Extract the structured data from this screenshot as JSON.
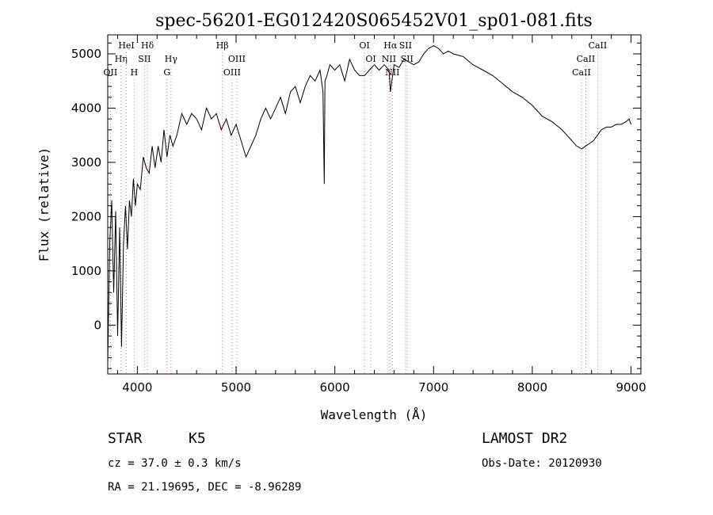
{
  "chart_data": {
    "type": "line",
    "title": "spec-56201-EG012420S065452V01_sp01-081.fits",
    "xlabel": "Wavelength (Å)",
    "ylabel": "Flux (relative)",
    "xlim": [
      3700,
      9100
    ],
    "ylim": [
      -900,
      5350
    ],
    "x_ticks": [
      4000,
      5000,
      6000,
      7000,
      8000,
      9000
    ],
    "y_ticks": [
      0,
      1000,
      2000,
      3000,
      4000,
      5000
    ],
    "grid": false,
    "series": [
      {
        "x": [
          3700,
          3720,
          3740,
          3760,
          3780,
          3800,
          3820,
          3840,
          3860,
          3880,
          3900,
          3920,
          3940,
          3960,
          3980,
          4000,
          4030,
          4060,
          4090,
          4120,
          4150,
          4180,
          4210,
          4240,
          4270,
          4300,
          4330,
          4360,
          4400,
          4450,
          4500,
          4550,
          4600,
          4650,
          4700,
          4750,
          4800,
          4850,
          4900,
          4950,
          5000,
          5050,
          5100,
          5150,
          5200,
          5250,
          5300,
          5350,
          5400,
          5450,
          5500,
          5550,
          5600,
          5650,
          5700,
          5750,
          5800,
          5850,
          5880,
          5893,
          5900,
          5920,
          5950,
          6000,
          6050,
          6100,
          6150,
          6200,
          6250,
          6300,
          6350,
          6400,
          6450,
          6500,
          6550,
          6563,
          6600,
          6650,
          6700,
          6750,
          6800,
          6850,
          6900,
          6950,
          7000,
          7050,
          7100,
          7150,
          7200,
          7300,
          7400,
          7500,
          7600,
          7700,
          7800,
          7900,
          8000,
          8100,
          8200,
          8300,
          8400,
          8450,
          8500,
          8540,
          8580,
          8620,
          8660,
          8700,
          8750,
          8800,
          8850,
          8900,
          8950,
          8980,
          9000
        ],
        "y": [
          -700,
          1500,
          2300,
          600,
          2100,
          -200,
          1800,
          -400,
          1500,
          2200,
          1400,
          2300,
          2000,
          2700,
          2200,
          2600,
          2500,
          3100,
          2900,
          2800,
          3300,
          2900,
          3300,
          3000,
          3600,
          3100,
          3500,
          3300,
          3500,
          3900,
          3700,
          3900,
          3800,
          3600,
          4000,
          3800,
          3900,
          3600,
          3800,
          3500,
          3700,
          3400,
          3100,
          3300,
          3500,
          3800,
          4000,
          3800,
          4000,
          4200,
          3900,
          4300,
          4400,
          4100,
          4400,
          4600,
          4500,
          4700,
          4300,
          2600,
          4500,
          4600,
          4800,
          4700,
          4800,
          4500,
          4900,
          4700,
          4600,
          4600,
          4700,
          4800,
          4700,
          4800,
          4700,
          4300,
          4800,
          4750,
          4900,
          4850,
          4800,
          4850,
          5000,
          5100,
          5150,
          5100,
          5000,
          5050,
          5000,
          4950,
          4800,
          4700,
          4600,
          4450,
          4300,
          4200,
          4050,
          3850,
          3750,
          3600,
          3400,
          3300,
          3250,
          3300,
          3350,
          3400,
          3500,
          3600,
          3650,
          3650,
          3700,
          3700,
          3750,
          3800,
          3700
        ]
      }
    ],
    "lines": [
      {
        "label": "OII",
        "x": 3727,
        "row": 3
      },
      {
        "label": "Hη",
        "x": 3835,
        "row": 2
      },
      {
        "label": "HeI",
        "x": 3889,
        "row": 1
      },
      {
        "label": "H",
        "x": 3968,
        "row": 3
      },
      {
        "label": "SII",
        "x": 4072,
        "row": 2
      },
      {
        "label": "Hδ",
        "x": 4102,
        "row": 1
      },
      {
        "label": "G",
        "x": 4300,
        "row": 3
      },
      {
        "label": "Hγ",
        "x": 4341,
        "row": 2
      },
      {
        "label": "Hβ",
        "x": 4861,
        "row": 1
      },
      {
        "label": "OIII",
        "x": 4959,
        "row": 3
      },
      {
        "label": "OIII",
        "x": 5007,
        "row": 2
      },
      {
        "label": "OI",
        "x": 6300,
        "row": 1
      },
      {
        "label": "OI",
        "x": 6364,
        "row": 2
      },
      {
        "label": "NII",
        "x": 6548,
        "row": 2
      },
      {
        "label": "Hα",
        "x": 6563,
        "row": 1
      },
      {
        "label": "NII",
        "x": 6583,
        "row": 3
      },
      {
        "label": "SII",
        "x": 6716,
        "row": 1
      },
      {
        "label": "SII",
        "x": 6731,
        "row": 2
      },
      {
        "label": "CaII",
        "x": 8498,
        "row": 3
      },
      {
        "label": "CaII",
        "x": 8542,
        "row": 2
      },
      {
        "label": "CaII",
        "x": 8662,
        "row": 1
      }
    ]
  },
  "info": {
    "class": "STAR",
    "subclass": "K5",
    "survey": "LAMOST DR2",
    "cz": "cz = 37.0 ± 0.3 km/s",
    "obs_date": "Obs-Date: 20120930",
    "radec": "RA =  21.19695, DEC =  -8.96289"
  }
}
